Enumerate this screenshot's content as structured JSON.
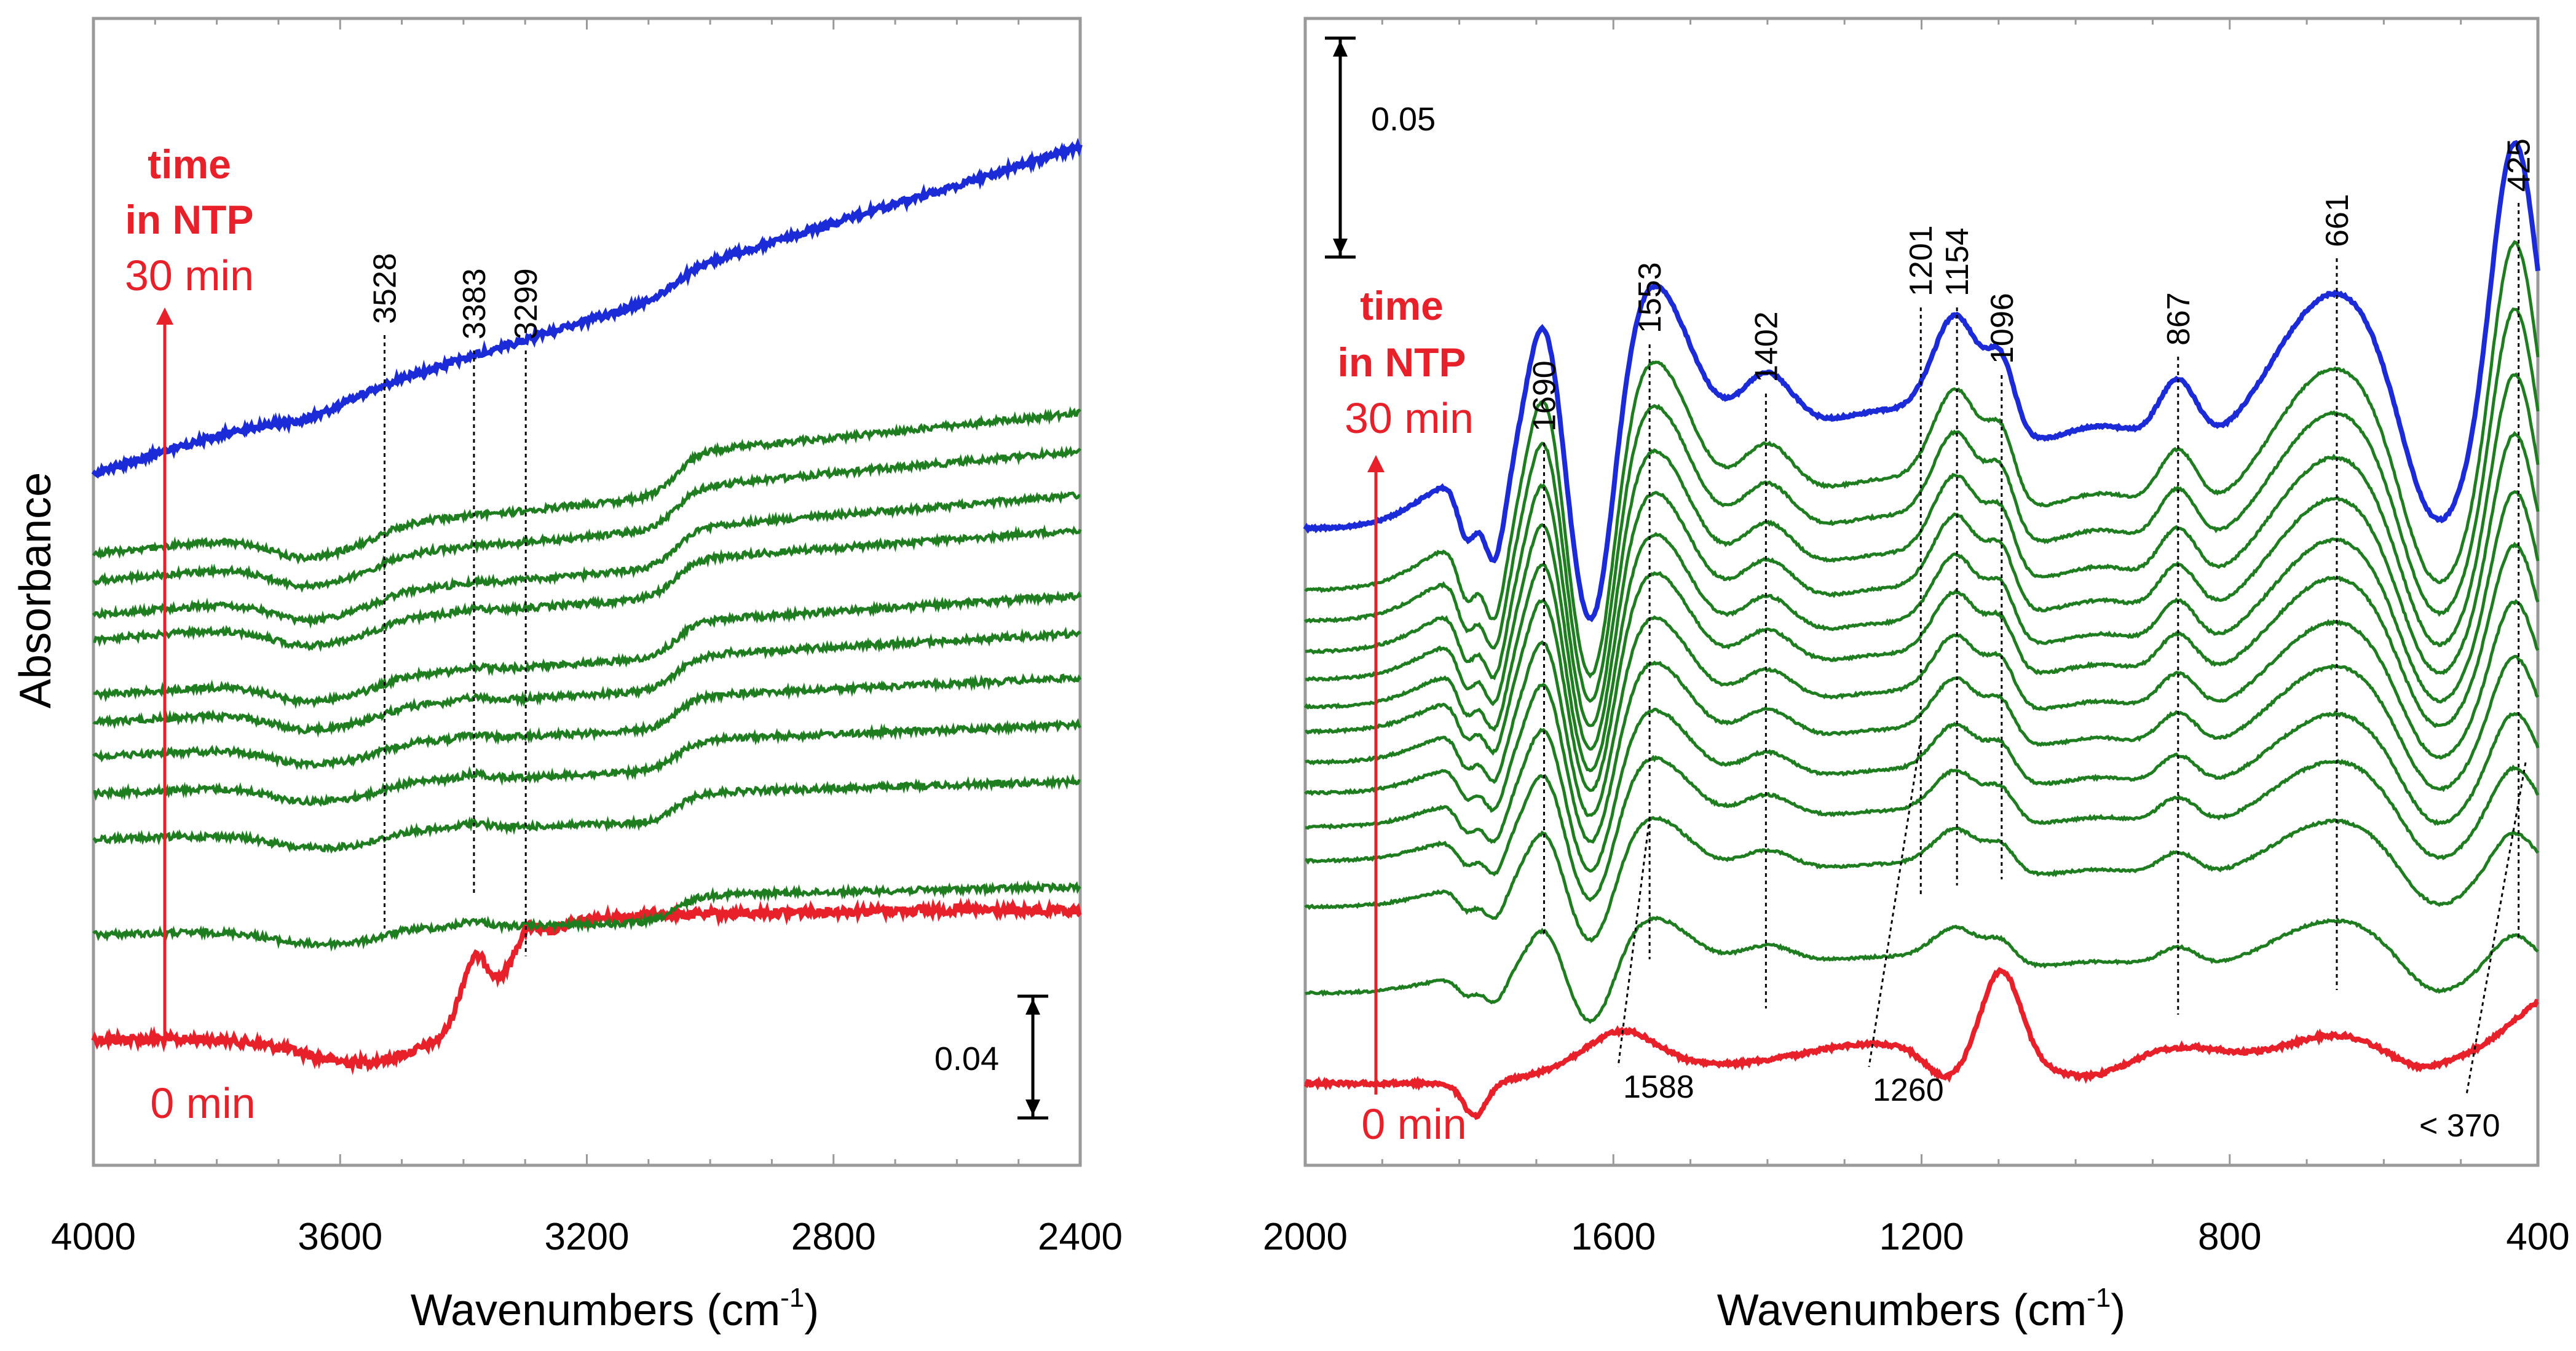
{
  "chart_data": [
    {
      "type": "line",
      "panel": "left",
      "xlabel": "Wavenumbers (cm",
      "xlabel_sup": "-1",
      "xlabel_close": ")",
      "ylabel": "Absorbance",
      "xlim": [
        4000,
        2400
      ],
      "x_reversed": true,
      "x_ticks": [
        "4000",
        "3600",
        "3200",
        "2800",
        "2400"
      ],
      "series_count": 12,
      "series_colors": {
        "first": "#e8202a",
        "middle": "#1e7d1e",
        "last": "#1c2bd8"
      },
      "time_annotation": {
        "line1": "time",
        "line2": "in NTP",
        "end": "30 min",
        "start": "0 min"
      },
      "scale_bar": {
        "value": "0.04"
      },
      "peaks": [
        {
          "wavenumber": 3528,
          "label": "3528"
        },
        {
          "wavenumber": 3383,
          "label": "3383"
        },
        {
          "wavenumber": 3299,
          "label": "3299"
        }
      ]
    },
    {
      "type": "line",
      "panel": "right",
      "xlabel": "Wavenumbers (cm",
      "xlabel_sup": "-1",
      "xlabel_close": ")",
      "xlim": [
        2000,
        400
      ],
      "x_reversed": true,
      "x_ticks": [
        "2000",
        "1600",
        "1200",
        "800",
        "400"
      ],
      "series_count": 14,
      "series_colors": {
        "first": "#e8202a",
        "middle": "#1e7d1e",
        "last": "#1c2bd8"
      },
      "time_annotation": {
        "line1": "time",
        "line2": "in NTP",
        "end": "30 min",
        "start": "0 min"
      },
      "scale_bar": {
        "value": "0.05"
      },
      "peaks_top": [
        {
          "wavenumber": 1690,
          "label": "1690"
        },
        {
          "wavenumber": 1553,
          "label": "1553"
        },
        {
          "wavenumber": 1402,
          "label": "1402"
        },
        {
          "wavenumber": 1201,
          "label": "1201"
        },
        {
          "wavenumber": 1154,
          "label": "1154"
        },
        {
          "wavenumber": 1096,
          "label": "1096"
        },
        {
          "wavenumber": 867,
          "label": "867"
        },
        {
          "wavenumber": 661,
          "label": "661"
        },
        {
          "wavenumber": 425,
          "label": "425"
        }
      ],
      "peaks_bottom": [
        {
          "wavenumber": 1588,
          "label": "1588"
        },
        {
          "wavenumber": 1260,
          "label": "1260"
        },
        {
          "wavenumber": 370,
          "label": "< 370"
        }
      ]
    }
  ]
}
